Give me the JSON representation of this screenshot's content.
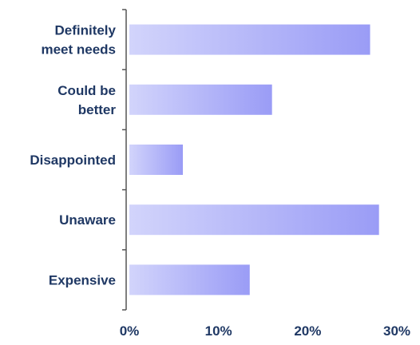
{
  "chart_data": {
    "type": "bar",
    "orientation": "horizontal",
    "categories": [
      [
        "Definitely",
        "meet needs"
      ],
      [
        "Could be",
        "better"
      ],
      [
        "Disappointed"
      ],
      [
        "Unaware"
      ],
      [
        "Expensive"
      ]
    ],
    "values": [
      27,
      16,
      6,
      28,
      13.5
    ],
    "xlim": [
      0,
      30
    ],
    "xticks": [
      "0%",
      "10%",
      "20%",
      "30%"
    ],
    "grid": false,
    "legend": "none",
    "colors": {
      "bar_light": "#d2d4fb",
      "bar_dark": "#9a9cf6",
      "label": "#1f3864",
      "axis": "#555555"
    }
  }
}
